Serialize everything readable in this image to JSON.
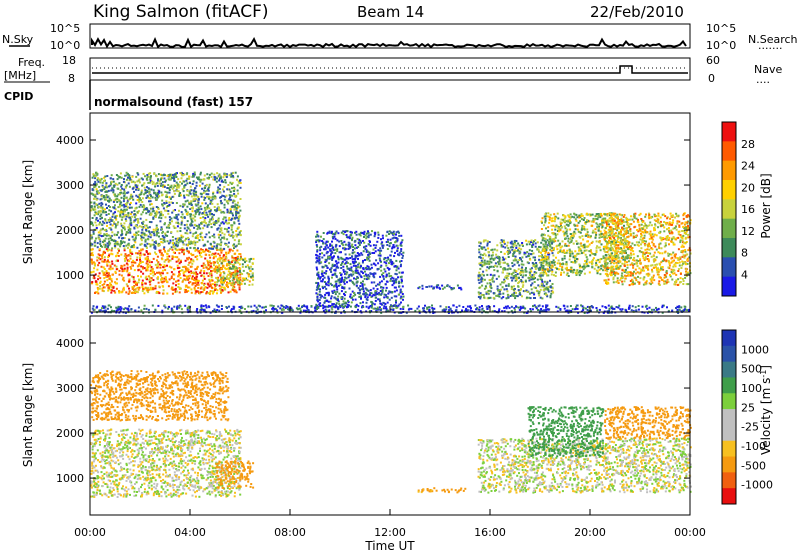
{
  "header": {
    "station": "King Salmon (fitACF)",
    "beam": "Beam 14",
    "date": "22/Feb/2010"
  },
  "top_panels": {
    "nsky_label": "N.Sky",
    "nsearch_label": "N.Search",
    "nsearch_dots": ".......",
    "freq_label_1": "Freq.",
    "freq_label_2": "[MHz]",
    "nave_label": "Nave",
    "nave_dots": "....",
    "cpid_label": "CPID",
    "cpid_value": "normalsound (fast) 157",
    "noise_ticks": [
      "10^5",
      "10^0"
    ],
    "freq_ticks": [
      "18",
      "8"
    ],
    "nave_ticks": [
      "60",
      "0"
    ]
  },
  "colors": {
    "power": [
      "#1a1ae6",
      "#2a4fb0",
      "#3d8a5a",
      "#6fae4a",
      "#c8d23c",
      "#ffd000",
      "#ff9a00",
      "#ff5a00",
      "#ee1010"
    ],
    "velocity": [
      "#e80f0f",
      "#f06010",
      "#f59a10",
      "#f7c020",
      "#c0c0c0",
      "#c0c0c0",
      "#7ccf3c",
      "#3f9e4a",
      "#3a7a86",
      "#2a52a8",
      "#1e34b4"
    ]
  },
  "chart_data": [
    {
      "type": "heatmap",
      "title": "Power",
      "xlabel": "Time UT",
      "ylabel": "Slant Range [km]",
      "xlim": [
        0,
        24
      ],
      "ylim": [
        180,
        4600
      ],
      "x_ticks": [
        "00:00",
        "04:00",
        "08:00",
        "12:00",
        "16:00",
        "20:00",
        "00:00"
      ],
      "y_ticks": [
        "1000",
        "2000",
        "3000",
        "4000"
      ],
      "colorbar_label": "Power [dB]",
      "colorbar_ticks": [
        "4",
        "8",
        "12",
        "16",
        "20",
        "24",
        "28"
      ],
      "regions": [
        {
          "t": [
            0.0,
            6.0
          ],
          "r": [
            600,
            1600
          ],
          "value": 24
        },
        {
          "t": [
            0.0,
            6.0
          ],
          "r": [
            1600,
            3300
          ],
          "value": 12
        },
        {
          "t": [
            5.0,
            6.5
          ],
          "r": [
            800,
            1400
          ],
          "value": 16
        },
        {
          "t": [
            9.0,
            12.5
          ],
          "r": [
            300,
            2000
          ],
          "value": 6
        },
        {
          "t": [
            13.0,
            15.0
          ],
          "r": [
            700,
            800
          ],
          "value": 8
        },
        {
          "t": [
            15.5,
            18.5
          ],
          "r": [
            500,
            1800
          ],
          "value": 12
        },
        {
          "t": [
            18.0,
            21.5
          ],
          "r": [
            1000,
            2400
          ],
          "value": 16
        },
        {
          "t": [
            20.5,
            24.0
          ],
          "r": [
            800,
            2400
          ],
          "value": 20
        },
        {
          "t": [
            0.0,
            24.0
          ],
          "r": [
            180,
            350
          ],
          "value": 6
        }
      ]
    },
    {
      "type": "heatmap",
      "title": "Velocity",
      "xlabel": "Time UT",
      "ylabel": "Slant Range [km]",
      "xlim": [
        0,
        24
      ],
      "ylim": [
        180,
        4600
      ],
      "x_ticks": [
        "00:00",
        "04:00",
        "08:00",
        "12:00",
        "16:00",
        "20:00",
        "00:00"
      ],
      "y_ticks": [
        "1000",
        "2000",
        "3000",
        "4000"
      ],
      "colorbar_label": "Velocity [m s^-1]",
      "colorbar_ticks": [
        "1000",
        "500",
        "100",
        "25",
        "-25",
        "-100",
        "-500",
        "-1000"
      ],
      "regions": [
        {
          "t": [
            0.0,
            6.0
          ],
          "r": [
            600,
            2100
          ],
          "value": 0
        },
        {
          "t": [
            0.0,
            5.5
          ],
          "r": [
            2300,
            3400
          ],
          "value": -300
        },
        {
          "t": [
            5.0,
            6.5
          ],
          "r": [
            800,
            1400
          ],
          "value": -200
        },
        {
          "t": [
            13.0,
            15.0
          ],
          "r": [
            700,
            800
          ],
          "value": -150
        },
        {
          "t": [
            15.5,
            24.0
          ],
          "r": [
            700,
            1900
          ],
          "value": 0
        },
        {
          "t": [
            17.5,
            20.5
          ],
          "r": [
            1500,
            2600
          ],
          "value": 300
        },
        {
          "t": [
            20.5,
            24.0
          ],
          "r": [
            1900,
            2600
          ],
          "value": -400
        }
      ]
    }
  ]
}
